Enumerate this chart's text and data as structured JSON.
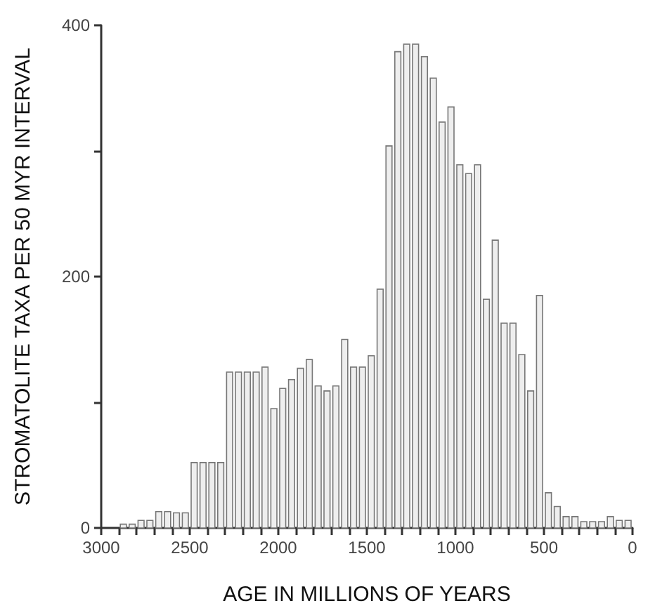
{
  "chart_data": {
    "type": "histogram",
    "xlabel": "AGE IN MILLIONS OF YEARS",
    "ylabel": "STROMATOLITE TAXA PER 50 MYR INTERVAL",
    "bins": [
      3000,
      2950,
      2900,
      2850,
      2800,
      2750,
      2700,
      2650,
      2600,
      2550,
      2500,
      2450,
      2400,
      2350,
      2300,
      2250,
      2200,
      2150,
      2100,
      2050,
      2000,
      1950,
      1900,
      1850,
      1800,
      1750,
      1700,
      1650,
      1600,
      1550,
      1500,
      1450,
      1400,
      1350,
      1300,
      1250,
      1200,
      1150,
      1100,
      1050,
      1000,
      950,
      900,
      850,
      800,
      750,
      700,
      650,
      600,
      550,
      500,
      450,
      400,
      350,
      300,
      250,
      200,
      150,
      100,
      50,
      0
    ],
    "values": [
      0,
      0,
      3,
      3,
      6,
      6,
      13,
      13,
      12,
      12,
      52,
      52,
      52,
      52,
      124,
      124,
      124,
      124,
      128,
      95,
      111,
      118,
      127,
      134,
      113,
      109,
      113,
      150,
      128,
      128,
      137,
      190,
      304,
      379,
      385,
      385,
      375,
      358,
      323,
      335,
      289,
      282,
      289,
      182,
      229,
      163,
      163,
      138,
      109,
      185,
      28,
      17,
      9,
      9,
      5,
      5,
      5,
      9,
      6,
      6
    ],
    "color": "#eeeeee",
    "xlim": [
      3000,
      0
    ],
    "xticks": [
      3000,
      {
        "value": 2900,
        "label": null
      },
      {
        "value": 2800,
        "label": null
      },
      {
        "value": 2700,
        "label": null
      },
      {
        "value": 2600,
        "label": null
      },
      2500,
      {
        "value": 2400,
        "label": null
      },
      {
        "value": 2300,
        "label": null
      },
      {
        "value": 2200,
        "label": null
      },
      {
        "value": 2100,
        "label": null
      },
      2000,
      {
        "value": 1900,
        "label": null
      },
      {
        "value": 1800,
        "label": null
      },
      {
        "value": 1700,
        "label": null
      },
      {
        "value": 1600,
        "label": null
      },
      1500,
      {
        "value": 1400,
        "label": null
      },
      {
        "value": 1300,
        "label": null
      },
      {
        "value": 1200,
        "label": null
      },
      {
        "value": 1100,
        "label": null
      },
      1000,
      {
        "value": 900,
        "label": null
      },
      {
        "value": 800,
        "label": null
      },
      {
        "value": 700,
        "label": null
      },
      {
        "value": 600,
        "label": null
      },
      500,
      {
        "value": 400,
        "label": null
      },
      {
        "value": 300,
        "label": null
      },
      {
        "value": 200,
        "label": null
      },
      {
        "value": 100,
        "label": null
      },
      0
    ],
    "ylim": [
      0,
      400
    ],
    "yticks": [
      0,
      {
        "value": 100,
        "label": null
      },
      200,
      {
        "value": 300,
        "label": null
      },
      400
    ],
    "grid": false
  }
}
